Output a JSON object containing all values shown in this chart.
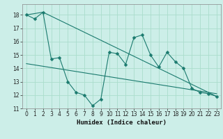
{
  "xlabel": "Humidex (Indice chaleur)",
  "background_color": "#cceee8",
  "grid_color": "#aaddcc",
  "line_color": "#1a7a6e",
  "xlim": [
    -0.5,
    23.5
  ],
  "ylim": [
    11,
    18.8
  ],
  "yticks": [
    11,
    12,
    13,
    14,
    15,
    16,
    17,
    18
  ],
  "xticks": [
    0,
    1,
    2,
    3,
    4,
    5,
    6,
    7,
    8,
    9,
    10,
    11,
    12,
    13,
    14,
    15,
    16,
    17,
    18,
    19,
    20,
    21,
    22,
    23
  ],
  "series1_x": [
    0,
    1,
    2,
    3,
    4,
    5,
    6,
    7,
    8,
    9,
    10,
    11,
    12,
    13,
    14,
    15,
    16,
    17,
    18,
    19,
    20,
    21,
    22,
    23
  ],
  "series1_y": [
    18.0,
    17.7,
    18.2,
    14.7,
    14.8,
    13.0,
    12.2,
    12.0,
    11.2,
    11.7,
    15.2,
    15.1,
    14.3,
    16.3,
    16.5,
    15.0,
    14.1,
    15.2,
    14.5,
    14.0,
    12.5,
    12.2,
    12.1,
    11.9
  ],
  "series2_x": [
    0,
    2,
    23
  ],
  "series2_y": [
    18.0,
    18.2,
    11.9
  ],
  "series3_x": [
    0,
    23
  ],
  "series3_y": [
    14.35,
    12.1
  ]
}
